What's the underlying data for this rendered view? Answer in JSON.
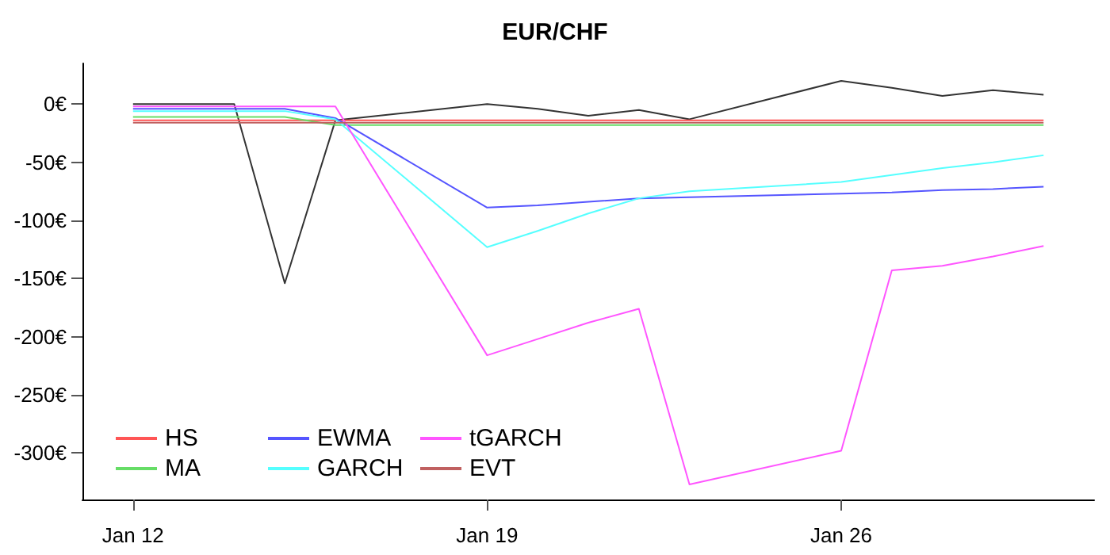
{
  "chart_data": {
    "type": "line",
    "title": "EUR/CHF",
    "x": [
      "--01-12",
      "--01-13",
      "--01-14",
      "--01-15",
      "--01-16",
      "--01-19",
      "--01-20",
      "--01-21",
      "--01-22",
      "--01-23",
      "--01-26",
      "--01-27",
      "--01-28",
      "--01-29",
      "--01-30"
    ],
    "series": [
      {
        "color": "#333333",
        "values": [
          0,
          0,
          0,
          -154,
          -14,
          0,
          -4,
          -10,
          -5,
          -13,
          20,
          14,
          7,
          12,
          8
        ]
      },
      {
        "name": "HS",
        "color": "#ff5555",
        "values": [
          -14,
          -14,
          -14,
          -14,
          -14,
          -14,
          -14,
          -14,
          -14,
          -14,
          -14,
          -14,
          -14,
          -14,
          -14
        ]
      },
      {
        "name": "MA",
        "color": "#66dd66",
        "values": [
          -11,
          -11,
          -11,
          -11,
          -18,
          -18,
          -18,
          -18,
          -18,
          -18,
          -18,
          -18,
          -18,
          -18,
          -18
        ]
      },
      {
        "name": "EWMA",
        "color": "#5555ff",
        "values": [
          -4,
          -4,
          -4,
          -4,
          -12,
          -89,
          -87,
          -84,
          -81,
          -80,
          -77,
          -76,
          -74,
          -73,
          -71
        ]
      },
      {
        "name": "GARCH",
        "color": "#55ffff",
        "values": [
          -6,
          -6,
          -6,
          -6,
          -13,
          -123,
          -109,
          -94,
          -81,
          -75,
          -67,
          -61,
          -55,
          -50,
          -44
        ]
      },
      {
        "name": "tGARCH",
        "color": "#ff55ff",
        "values": [
          -2,
          -2,
          -2,
          -2,
          -2,
          -216,
          -202,
          -188,
          -176,
          -327,
          -298,
          -143,
          -139,
          -131,
          -122
        ]
      },
      {
        "name": "EVT",
        "color": "#c06060",
        "values": [
          -16,
          -16,
          -16,
          -16,
          -16,
          -16,
          -16,
          -16,
          -16,
          -16,
          -16,
          -16,
          -16,
          -16,
          -16
        ]
      }
    ],
    "xlim": [
      "--01-11",
      "--01-31"
    ],
    "xticks": [
      {
        "value": "--01-12",
        "label": "Jan 12"
      },
      {
        "value": "--01-19",
        "label": "Jan 19"
      },
      {
        "value": "--01-26",
        "label": "Jan 26"
      }
    ],
    "ylim": [
      -340,
      35
    ],
    "yticks": [
      {
        "value": -300,
        "label": "-300€"
      },
      {
        "value": -250,
        "label": "-250€"
      },
      {
        "value": -200,
        "label": "-200€"
      },
      {
        "value": -150,
        "label": "-150€"
      },
      {
        "value": -100,
        "label": "-100€"
      },
      {
        "value": -50,
        "label": "-50€"
      },
      {
        "value": 0,
        "label": "0€"
      }
    ],
    "legend": "bottom left",
    "grid": false
  }
}
